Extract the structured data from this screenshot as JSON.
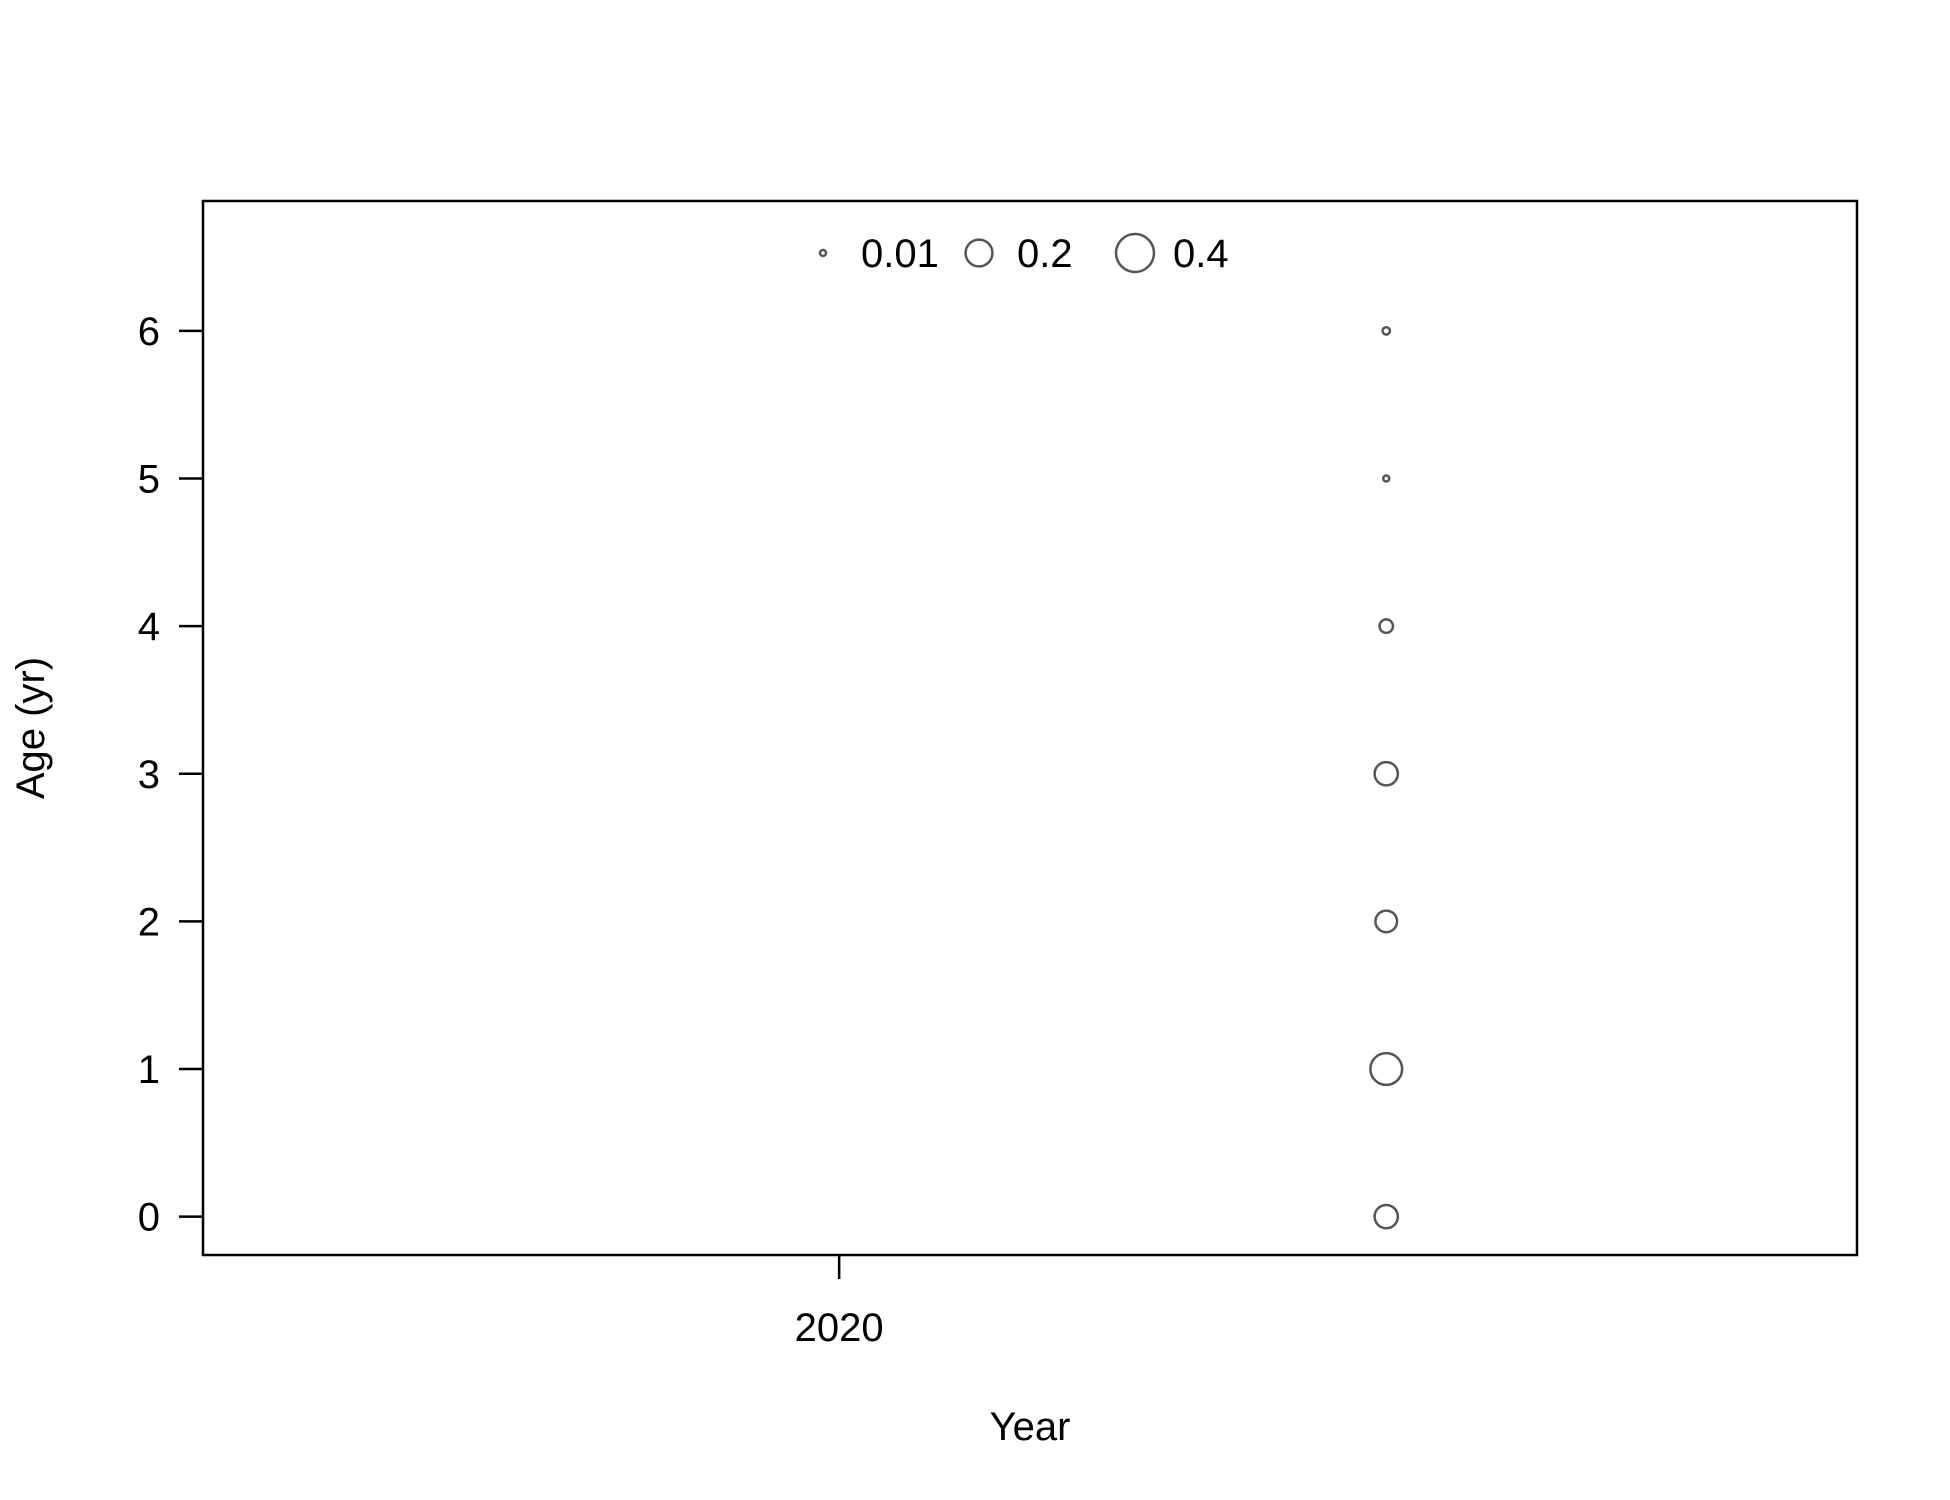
{
  "chart_data": {
    "type": "scatter",
    "title": "",
    "xlabel": "Year",
    "ylabel": "Age (yr)",
    "xlim": [
      2019.5,
      2020.8
    ],
    "ylim": [
      -0.26,
      6.88
    ],
    "x_ticks": [
      2020
    ],
    "y_ticks": [
      0,
      1,
      2,
      3,
      4,
      5,
      6
    ],
    "grid": false,
    "legend_position": "top-center",
    "bubble_legend": [
      {
        "value": 0.01,
        "label": "0.01"
      },
      {
        "value": 0.2,
        "label": "0.2"
      },
      {
        "value": 0.4,
        "label": "0.4"
      }
    ],
    "series": [
      {
        "points": [
          {
            "x": 2020.43,
            "y": 0,
            "size": 0.15
          },
          {
            "x": 2020.43,
            "y": 1,
            "size": 0.28
          },
          {
            "x": 2020.43,
            "y": 2,
            "size": 0.13
          },
          {
            "x": 2020.43,
            "y": 3,
            "size": 0.15
          },
          {
            "x": 2020.43,
            "y": 4,
            "size": 0.05
          },
          {
            "x": 2020.43,
            "y": 5,
            "size": 0.01
          },
          {
            "x": 2020.43,
            "y": 6,
            "size": 0.015
          }
        ]
      }
    ],
    "marker_color": "#555555",
    "axis_color": "#000000"
  }
}
